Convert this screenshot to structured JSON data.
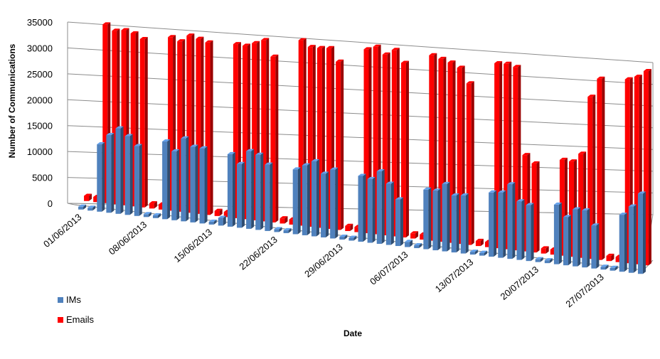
{
  "chart_data": {
    "type": "bar",
    "title": "",
    "xlabel": "Date",
    "ylabel": "Number of Communications",
    "ylim": [
      0,
      35000
    ],
    "yticks": [
      "35000",
      "30000",
      "25000",
      "20000",
      "15000",
      "10000",
      "5000",
      "0"
    ],
    "date_labels": [
      "01/06/2013",
      "08/06/2013",
      "15/06/2013",
      "22/06/2013",
      "29/06/2013",
      "06/07/2013",
      "13/07/2013",
      "20/07/2013",
      "27/07/2013"
    ],
    "categories": [
      "01/06/2013",
      "02/06/2013",
      "03/06/2013",
      "04/06/2013",
      "05/06/2013",
      "06/06/2013",
      "07/06/2013",
      "08/06/2013",
      "09/06/2013",
      "10/06/2013",
      "11/06/2013",
      "12/06/2013",
      "13/06/2013",
      "14/06/2013",
      "15/06/2013",
      "16/06/2013",
      "17/06/2013",
      "18/06/2013",
      "19/06/2013",
      "20/06/2013",
      "21/06/2013",
      "22/06/2013",
      "23/06/2013",
      "24/06/2013",
      "25/06/2013",
      "26/06/2013",
      "27/06/2013",
      "28/06/2013",
      "29/06/2013",
      "30/06/2013",
      "01/07/2013",
      "02/07/2013",
      "03/07/2013",
      "04/07/2013",
      "05/07/2013",
      "06/07/2013",
      "07/07/2013",
      "08/07/2013",
      "09/07/2013",
      "10/07/2013",
      "11/07/2013",
      "12/07/2013",
      "13/07/2013",
      "14/07/2013",
      "15/07/2013",
      "16/07/2013",
      "17/07/2013",
      "18/07/2013",
      "19/07/2013",
      "20/07/2013",
      "21/07/2013",
      "22/07/2013",
      "23/07/2013",
      "24/07/2013",
      "25/07/2013",
      "26/07/2013",
      "27/07/2013",
      "28/07/2013",
      "29/07/2013",
      "30/07/2013",
      "31/07/2013"
    ],
    "series": [
      {
        "name": "IMs",
        "color": "#4f81bd",
        "values": [
          0,
          0,
          13000,
          15000,
          16500,
          15200,
          13500,
          0,
          0,
          15000,
          13300,
          16000,
          14600,
          14500,
          0,
          1500,
          14000,
          12300,
          15000,
          14500,
          12800,
          0,
          0,
          12500,
          13500,
          14500,
          12300,
          13300,
          0,
          0,
          12700,
          12300,
          14000,
          11800,
          9000,
          1000,
          0,
          11500,
          11500,
          13000,
          11000,
          11200,
          0,
          0,
          12400,
          12600,
          14400,
          11300,
          10800,
          0,
          0,
          11500,
          9300,
          11000,
          11000,
          8300,
          0,
          0,
          11000,
          12800,
          15500
        ]
      },
      {
        "name": "Emails",
        "color": "#ff0000",
        "values": [
          1000,
          1000,
          34500,
          33500,
          33800,
          33400,
          32500,
          1000,
          1000,
          33500,
          32900,
          34200,
          33800,
          33300,
          1000,
          1000,
          33600,
          33500,
          34200,
          35000,
          32000,
          1000,
          1000,
          35800,
          34700,
          34700,
          34900,
          32500,
          1000,
          1000,
          35500,
          36200,
          34900,
          36000,
          33700,
          1000,
          1000,
          35800,
          35300,
          34800,
          34000,
          31200,
          1000,
          1000,
          35700,
          35800,
          35400,
          18600,
          17200,
          1000,
          1000,
          18500,
          18400,
          20100,
          31300,
          35000,
          1000,
          1000,
          35500,
          36200,
          37500
        ]
      }
    ],
    "legend": {
      "position": "left",
      "entries": [
        "IMs",
        "Emails"
      ]
    }
  }
}
